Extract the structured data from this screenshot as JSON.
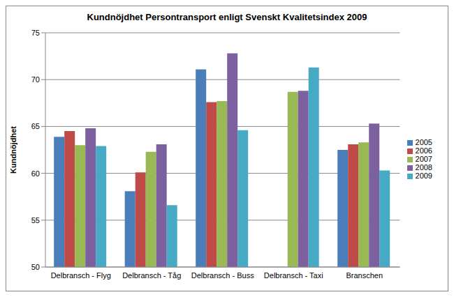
{
  "chart_data": {
    "type": "bar",
    "title": "Kundnöjdhet Persontransport enligt Svenskt Kvalitetsindex 2009",
    "y_label": "Kundnöjdhet",
    "categories": [
      "Delbransch - Flyg",
      "Delbransch - Tåg",
      "Delbransch - Buss",
      "Delbransch - Taxi",
      "Branschen"
    ],
    "series": [
      {
        "name": "2005",
        "color": "#4a7ebb",
        "values": [
          63.9,
          58.1,
          71.1,
          null,
          62.5
        ]
      },
      {
        "name": "2006",
        "color": "#be4b48",
        "values": [
          64.5,
          60.1,
          67.6,
          null,
          63.1
        ]
      },
      {
        "name": "2007",
        "color": "#98b954",
        "values": [
          63.0,
          62.3,
          67.7,
          68.7,
          63.3
        ]
      },
      {
        "name": "2008",
        "color": "#7d60a0",
        "values": [
          64.8,
          63.1,
          72.8,
          68.8,
          65.3
        ]
      },
      {
        "name": "2009",
        "color": "#46aac5",
        "values": [
          62.9,
          56.6,
          64.6,
          71.3,
          60.3
        ]
      }
    ],
    "ylim": [
      50,
      75
    ],
    "yticks": [
      50,
      55,
      60,
      65,
      70,
      75
    ],
    "grid": true,
    "legend": "right"
  }
}
